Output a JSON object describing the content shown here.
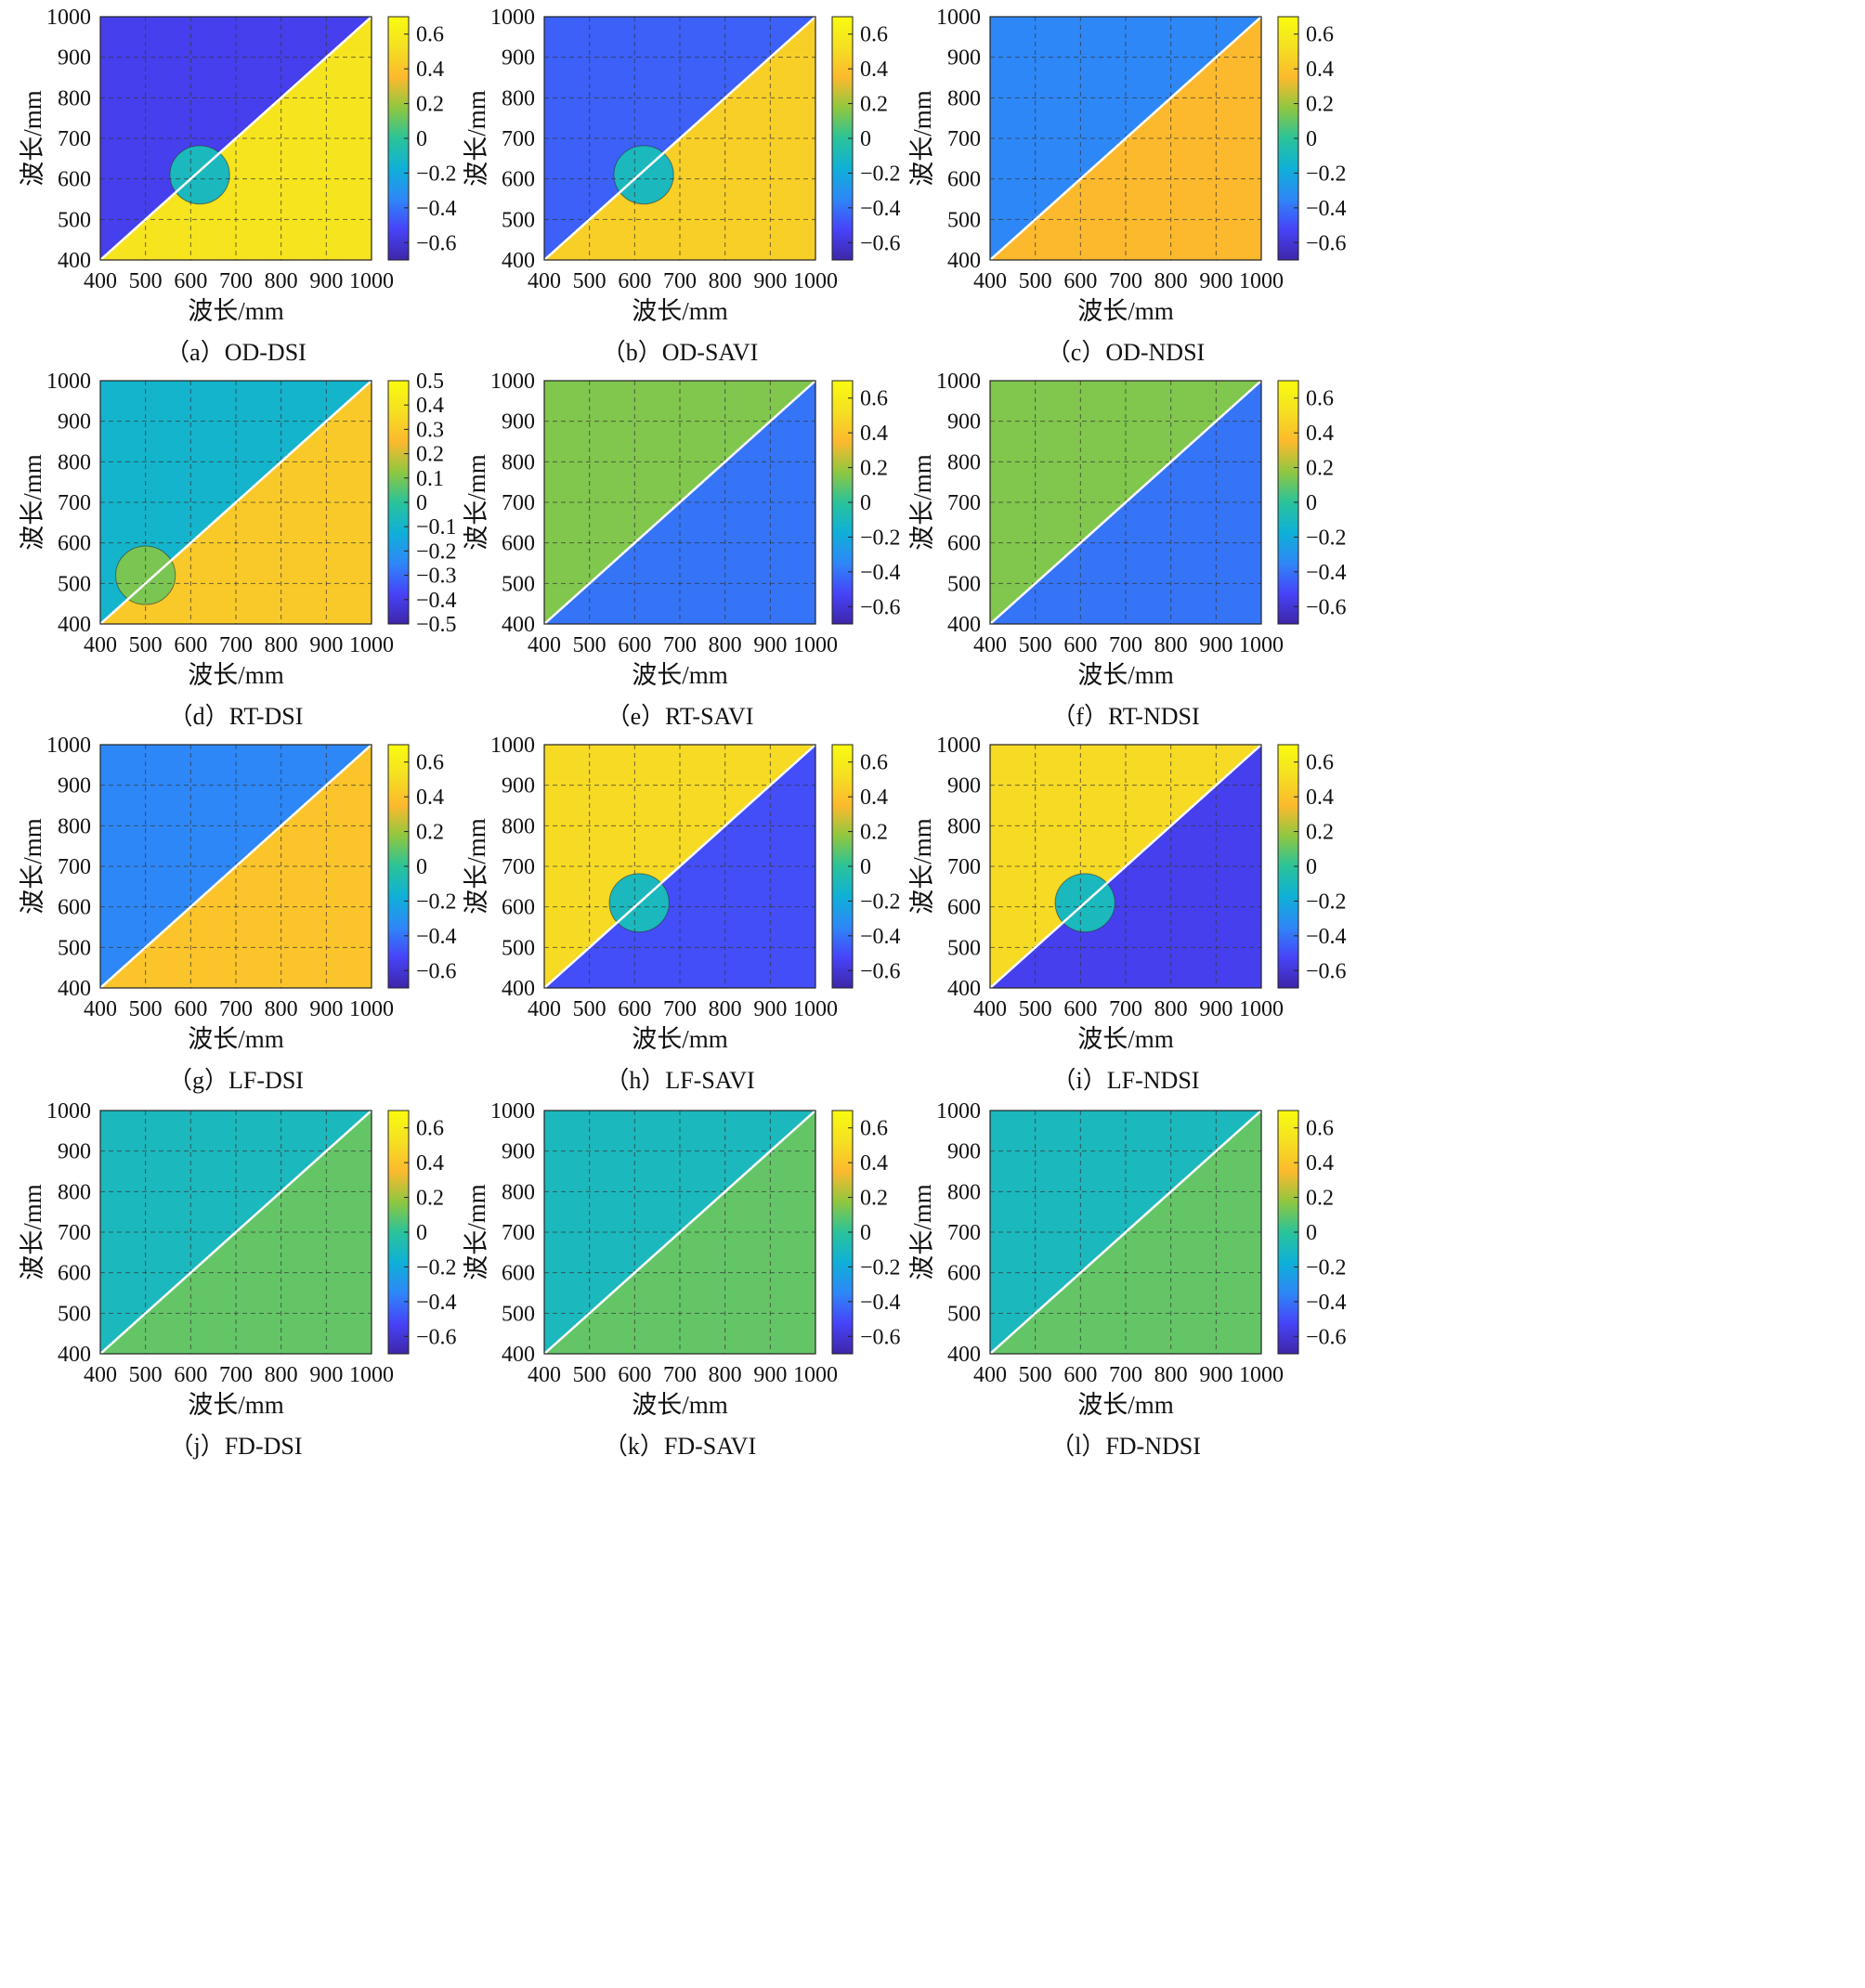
{
  "figure": {
    "axis_label": "波长/mm",
    "colormap": [
      "#3e26a8",
      "#4743f8",
      "#2e87f7",
      "#0fb0d8",
      "#2ac39a",
      "#8fc740",
      "#fcb92d",
      "#f5e022",
      "#f9fb0e"
    ]
  },
  "chart_data": [
    {
      "type": "heatmap",
      "caption": "（a）OD-DSI",
      "x_ticks": [
        "400",
        "500",
        "600",
        "700",
        "800",
        "900",
        "1000"
      ],
      "y_ticks": [
        "400",
        "500",
        "600",
        "700",
        "800",
        "900",
        "1000"
      ],
      "xlabel": "波长/mm",
      "ylabel": "波长/mm",
      "xlim": [
        400,
        1000
      ],
      "ylim": [
        400,
        1000
      ],
      "colorbar": {
        "ticks": [
          "0.6",
          "0.4",
          "0.2",
          "0",
          "−0.2",
          "−0.4",
          "−0.6"
        ],
        "range": [
          -0.7,
          0.7
        ]
      },
      "upper_value": -0.55,
      "lower_value": 0.55,
      "patch": {
        "x": 620,
        "y": 610,
        "value": -0.1
      },
      "grid": true
    },
    {
      "type": "heatmap",
      "caption": "（b）OD-SAVI",
      "x_ticks": [
        "400",
        "500",
        "600",
        "700",
        "800",
        "900",
        "1000"
      ],
      "y_ticks": [
        "400",
        "500",
        "600",
        "700",
        "800",
        "900",
        "1000"
      ],
      "xlabel": "波长/mm",
      "ylabel": "波长/mm",
      "xlim": [
        400,
        1000
      ],
      "ylim": [
        400,
        1000
      ],
      "colorbar": {
        "ticks": [
          "0.6",
          "0.4",
          "0.2",
          "0",
          "−0.2",
          "−0.4",
          "−0.6"
        ],
        "range": [
          -0.7,
          0.7
        ]
      },
      "upper_value": -0.45,
      "lower_value": 0.45,
      "patch": {
        "x": 620,
        "y": 610,
        "value": -0.1
      },
      "grid": true
    },
    {
      "type": "heatmap",
      "caption": "（c）OD-NDSI",
      "x_ticks": [
        "400",
        "500",
        "600",
        "700",
        "800",
        "900",
        "1000"
      ],
      "y_ticks": [
        "400",
        "500",
        "600",
        "700",
        "800",
        "900",
        "1000"
      ],
      "xlabel": "波长/mm",
      "ylabel": "波长/mm",
      "xlim": [
        400,
        1000
      ],
      "ylim": [
        400,
        1000
      ],
      "colorbar": {
        "ticks": [
          "0.6",
          "0.4",
          "0.2",
          "0",
          "−0.2",
          "−0.4",
          "−0.6"
        ],
        "range": [
          -0.7,
          0.7
        ]
      },
      "upper_value": -0.35,
      "lower_value": 0.35,
      "patch": null,
      "grid": true
    },
    {
      "type": "heatmap",
      "caption": "（d）RT-DSI",
      "x_ticks": [
        "400",
        "500",
        "600",
        "700",
        "800",
        "900",
        "1000"
      ],
      "y_ticks": [
        "400",
        "500",
        "600",
        "700",
        "800",
        "900",
        "1000"
      ],
      "xlabel": "波长/mm",
      "ylabel": "波长/mm",
      "xlim": [
        400,
        1000
      ],
      "ylim": [
        400,
        1000
      ],
      "colorbar": {
        "ticks": [
          "0.5",
          "0.4",
          "0.3",
          "0.2",
          "0.1",
          "0",
          "−0.1",
          "−0.2",
          "−0.3",
          "−0.4",
          "−0.5"
        ],
        "range": [
          -0.5,
          0.5
        ]
      },
      "upper_value": -0.1,
      "lower_value": 0.3,
      "patch": {
        "x": 500,
        "y": 520,
        "value": 0.1
      },
      "grid": true
    },
    {
      "type": "heatmap",
      "caption": "（e）RT-SAVI",
      "x_ticks": [
        "400",
        "500",
        "600",
        "700",
        "800",
        "900",
        "1000"
      ],
      "y_ticks": [
        "400",
        "500",
        "600",
        "700",
        "800",
        "900",
        "1000"
      ],
      "xlabel": "波长/mm",
      "ylabel": "波长/mm",
      "xlim": [
        400,
        1000
      ],
      "ylim": [
        400,
        1000
      ],
      "colorbar": {
        "ticks": [
          "0.6",
          "0.4",
          "0.2",
          "0",
          "−0.2",
          "−0.4",
          "−0.6"
        ],
        "range": [
          -0.7,
          0.7
        ]
      },
      "upper_value": 0.15,
      "lower_value": -0.4,
      "patch": null,
      "grid": true
    },
    {
      "type": "heatmap",
      "caption": "（f）RT-NDSI",
      "x_ticks": [
        "400",
        "500",
        "600",
        "700",
        "800",
        "900",
        "1000"
      ],
      "y_ticks": [
        "400",
        "500",
        "600",
        "700",
        "800",
        "900",
        "1000"
      ],
      "xlabel": "波长/mm",
      "ylabel": "波长/mm",
      "xlim": [
        400,
        1000
      ],
      "ylim": [
        400,
        1000
      ],
      "colorbar": {
        "ticks": [
          "0.6",
          "0.4",
          "0.2",
          "0",
          "−0.2",
          "−0.4",
          "−0.6"
        ],
        "range": [
          -0.7,
          0.7
        ]
      },
      "upper_value": 0.15,
      "lower_value": -0.4,
      "patch": null,
      "grid": true
    },
    {
      "type": "heatmap",
      "caption": "（g）LF-DSI",
      "x_ticks": [
        "400",
        "500",
        "600",
        "700",
        "800",
        "900",
        "1000"
      ],
      "y_ticks": [
        "400",
        "500",
        "600",
        "700",
        "800",
        "900",
        "1000"
      ],
      "xlabel": "波长/mm",
      "ylabel": "波长/mm",
      "xlim": [
        400,
        1000
      ],
      "ylim": [
        400,
        1000
      ],
      "colorbar": {
        "ticks": [
          "0.6",
          "0.4",
          "0.2",
          "0",
          "−0.2",
          "−0.4",
          "−0.6"
        ],
        "range": [
          -0.7,
          0.7
        ]
      },
      "upper_value": -0.35,
      "lower_value": 0.4,
      "patch": null,
      "grid": true
    },
    {
      "type": "heatmap",
      "caption": "（h）LF-SAVI",
      "x_ticks": [
        "400",
        "500",
        "600",
        "700",
        "800",
        "900",
        "1000"
      ],
      "y_ticks": [
        "400",
        "500",
        "600",
        "700",
        "800",
        "900",
        "1000"
      ],
      "xlabel": "波长/mm",
      "ylabel": "波长/mm",
      "xlim": [
        400,
        1000
      ],
      "ylim": [
        400,
        1000
      ],
      "colorbar": {
        "ticks": [
          "0.6",
          "0.4",
          "0.2",
          "0",
          "−0.2",
          "−0.4",
          "−0.6"
        ],
        "range": [
          -0.7,
          0.7
        ]
      },
      "upper_value": 0.5,
      "lower_value": -0.5,
      "patch": {
        "x": 610,
        "y": 610,
        "value": -0.1
      },
      "grid": true
    },
    {
      "type": "heatmap",
      "caption": "（i）LF-NDSI",
      "x_ticks": [
        "400",
        "500",
        "600",
        "700",
        "800",
        "900",
        "1000"
      ],
      "y_ticks": [
        "400",
        "500",
        "600",
        "700",
        "800",
        "900",
        "1000"
      ],
      "xlabel": "波长/mm",
      "ylabel": "波长/mm",
      "xlim": [
        400,
        1000
      ],
      "ylim": [
        400,
        1000
      ],
      "colorbar": {
        "ticks": [
          "0.6",
          "0.4",
          "0.2",
          "0",
          "−0.2",
          "−0.4",
          "−0.6"
        ],
        "range": [
          -0.7,
          0.7
        ]
      },
      "upper_value": 0.5,
      "lower_value": -0.55,
      "patch": {
        "x": 610,
        "y": 610,
        "value": -0.1
      },
      "grid": true
    },
    {
      "type": "heatmap",
      "caption": "（j）FD-DSI",
      "x_ticks": [
        "400",
        "500",
        "600",
        "700",
        "800",
        "900",
        "1000"
      ],
      "y_ticks": [
        "400",
        "500",
        "600",
        "700",
        "800",
        "900",
        "1000"
      ],
      "xlabel": "波长/mm",
      "ylabel": "波长/mm",
      "xlim": [
        400,
        1000
      ],
      "ylim": [
        400,
        1000
      ],
      "colorbar": {
        "ticks": [
          "0.6",
          "0.4",
          "0.2",
          "0",
          "−0.2",
          "−0.4",
          "−0.6"
        ],
        "range": [
          -0.7,
          0.7
        ]
      },
      "upper_value": -0.1,
      "lower_value": 0.1,
      "patch": null,
      "grid": true
    },
    {
      "type": "heatmap",
      "caption": "（k）FD-SAVI",
      "x_ticks": [
        "400",
        "500",
        "600",
        "700",
        "800",
        "900",
        "1000"
      ],
      "y_ticks": [
        "400",
        "500",
        "600",
        "700",
        "800",
        "900",
        "1000"
      ],
      "xlabel": "波长/mm",
      "ylabel": "波长/mm",
      "xlim": [
        400,
        1000
      ],
      "ylim": [
        400,
        1000
      ],
      "colorbar": {
        "ticks": [
          "0.6",
          "0.4",
          "0.2",
          "0",
          "−0.2",
          "−0.4",
          "−0.6"
        ],
        "range": [
          -0.7,
          0.7
        ]
      },
      "upper_value": -0.1,
      "lower_value": 0.1,
      "patch": null,
      "grid": true
    },
    {
      "type": "heatmap",
      "caption": "（l）FD-NDSI",
      "x_ticks": [
        "400",
        "500",
        "600",
        "700",
        "800",
        "900",
        "1000"
      ],
      "y_ticks": [
        "400",
        "500",
        "600",
        "700",
        "800",
        "900",
        "1000"
      ],
      "xlabel": "波长/mm",
      "ylabel": "波长/mm",
      "xlim": [
        400,
        1000
      ],
      "ylim": [
        400,
        1000
      ],
      "colorbar": {
        "ticks": [
          "0.6",
          "0.4",
          "0.2",
          "0",
          "−0.2",
          "−0.4",
          "−0.6"
        ],
        "range": [
          -0.7,
          0.7
        ]
      },
      "upper_value": -0.1,
      "lower_value": 0.1,
      "patch": null,
      "grid": true
    }
  ]
}
